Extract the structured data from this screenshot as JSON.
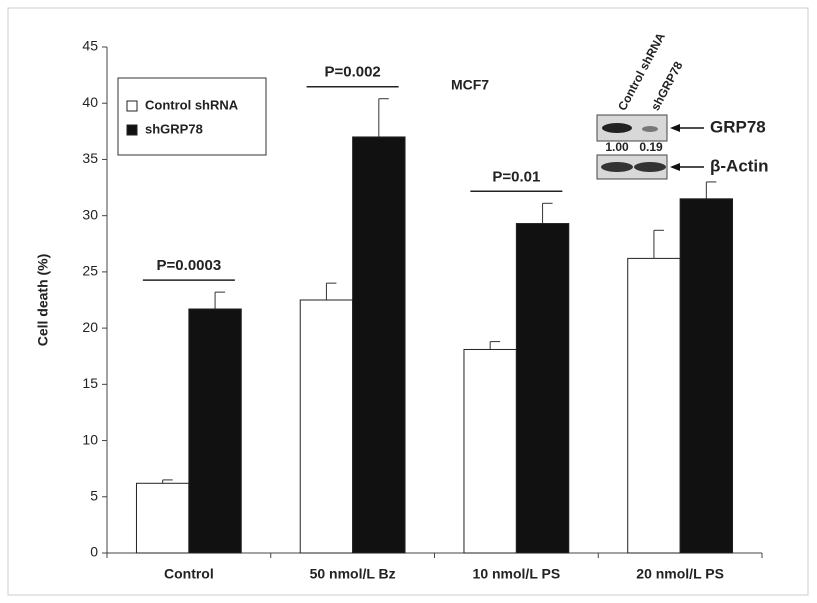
{
  "chart_data": {
    "type": "bar",
    "title": "MCF7",
    "ylabel": "Cell death (%)",
    "categories": [
      "Control",
      "50 nmol/L Bz",
      "10 nmol/L PS",
      "20 nmol/L PS"
    ],
    "series": [
      {
        "name": "Control shRNA",
        "color": "#ffffff",
        "values": [
          6.2,
          22.5,
          18.1,
          26.2
        ],
        "errors": [
          0.3,
          1.5,
          0.7,
          2.5
        ]
      },
      {
        "name": "shGRP78",
        "color": "#111111",
        "values": [
          21.7,
          37.0,
          29.3,
          31.5
        ],
        "errors": [
          1.5,
          3.4,
          1.8,
          1.5
        ]
      }
    ],
    "ylim": [
      0,
      45
    ],
    "yticks": [
      0,
      5,
      10,
      15,
      20,
      25,
      30,
      35,
      40,
      45
    ],
    "annotations": [
      "P=0.0003",
      "P=0.002",
      "P=0.01"
    ],
    "inset": {
      "lanes": [
        "Control shRNA",
        "shGRP78"
      ],
      "proteins": [
        "GRP78",
        "β-Actin"
      ],
      "ratios": [
        "1.00",
        "0.19"
      ]
    }
  }
}
